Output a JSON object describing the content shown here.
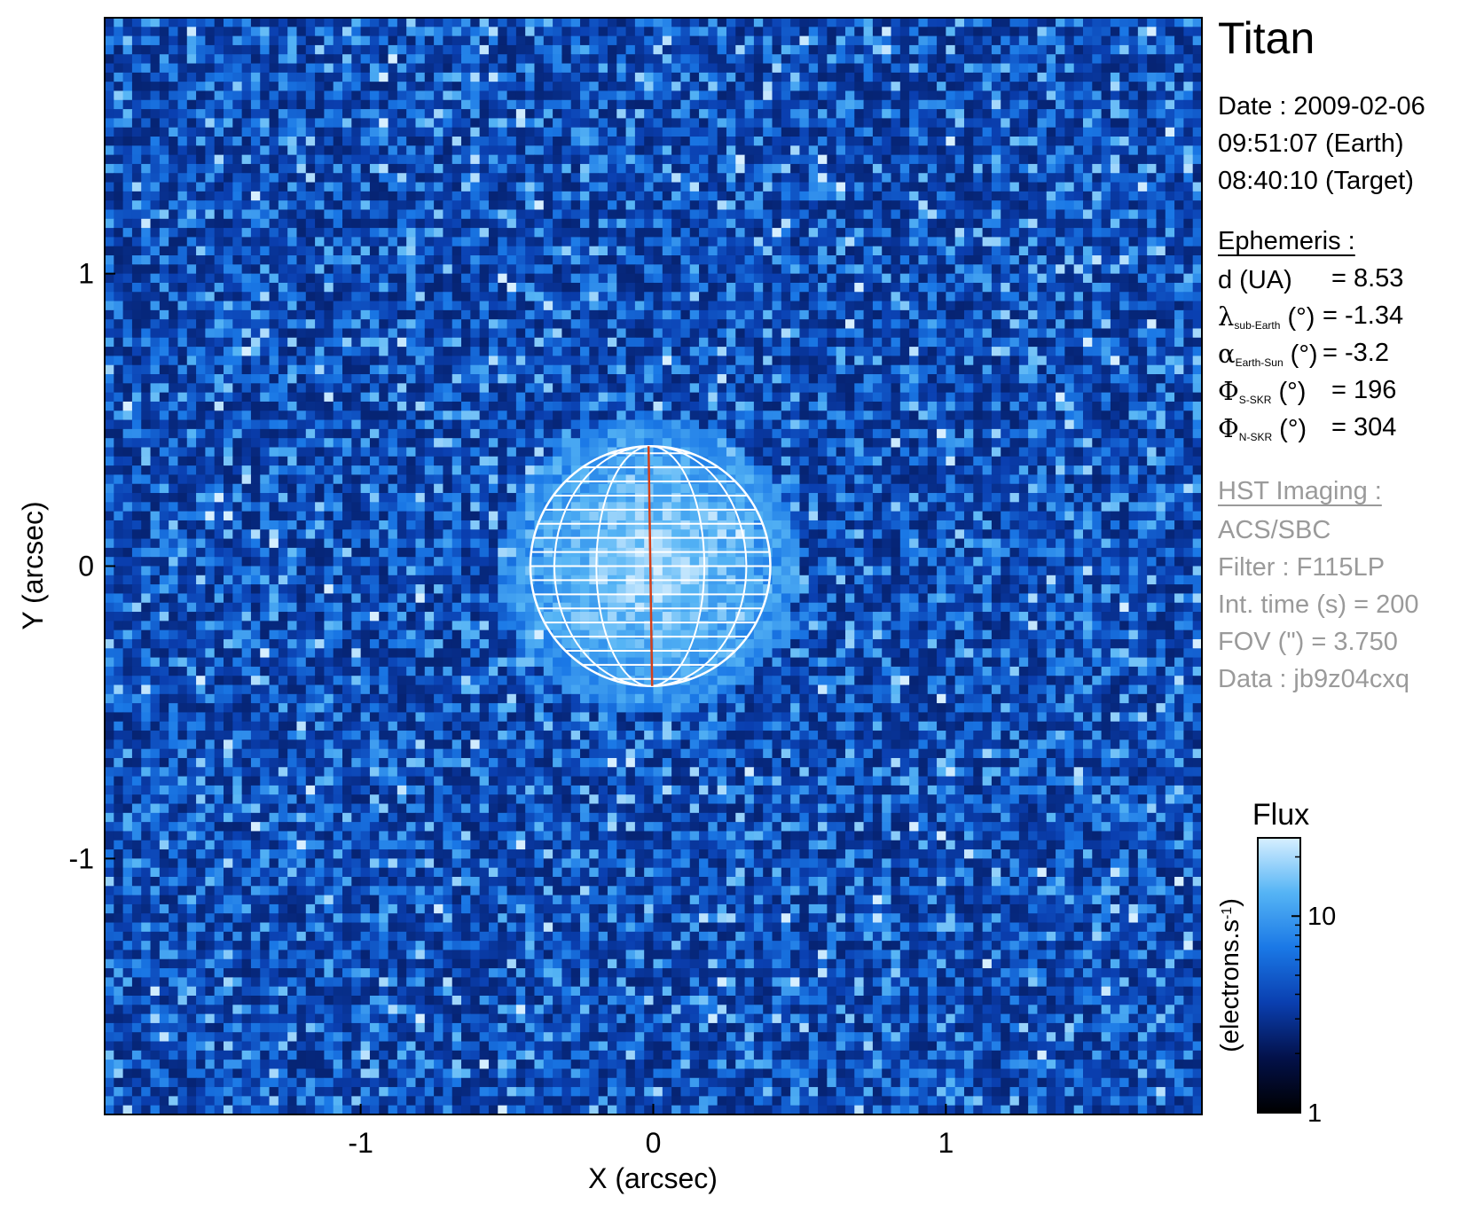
{
  "chart_data": {
    "type": "heatmap",
    "title": "Titan",
    "xlabel": "X (arcsec)",
    "ylabel": "Y (arcsec)",
    "xlim": [
      -1.875,
      1.875
    ],
    "ylim": [
      -1.875,
      1.875
    ],
    "x_ticks": [
      {
        "value": -1,
        "label": "-1"
      },
      {
        "value": 0,
        "label": "0"
      },
      {
        "value": 1,
        "label": "1"
      }
    ],
    "y_ticks": [
      {
        "value": 1,
        "label": "1"
      },
      {
        "value": 0,
        "label": "0"
      },
      {
        "value": -1,
        "label": "-1"
      }
    ],
    "disk": {
      "center_x": -0.01,
      "center_y": 0.0,
      "radius_arcsec": 0.41
    },
    "colorbar": {
      "title": "Flux",
      "label": "(electrons.s",
      "label_sup": "-1",
      "label_end": ")",
      "scale": "log",
      "range": [
        1,
        25
      ],
      "ticks": [
        {
          "value": 10,
          "label": "10"
        },
        {
          "value": 1,
          "label": "1"
        }
      ],
      "colors": [
        "#000000",
        "#03114a",
        "#0a3fb0",
        "#1a78e6",
        "#55b4f5",
        "#d7efff"
      ]
    },
    "grid": false,
    "accent_color": "#d2401b"
  },
  "info": {
    "title": "Titan",
    "date": "Date : 2009-02-06",
    "time_earth": "09:51:07 (Earth)",
    "time_target": "08:40:10 (Target)",
    "ephemeris_header": "Ephemeris :",
    "ephemeris": [
      {
        "sym": "",
        "sub": "",
        "label": "d (UA)",
        "value": "= 8.53"
      },
      {
        "sym": "λ",
        "sub": "sub-Earth",
        "label": " (°)",
        "value": "= -1.34"
      },
      {
        "sym": "α",
        "sub": "Earth-Sun",
        "label": " (°)",
        "value": "= -3.2"
      },
      {
        "sym": "Φ",
        "sub": "S-SKR",
        "label": " (°)",
        "value": "= 196"
      },
      {
        "sym": "Φ",
        "sub": "N-SKR",
        "label": " (°)",
        "value": "= 304"
      }
    ],
    "hst_header": "HST Imaging :",
    "hst": [
      "ACS/SBC",
      "Filter : F115LP",
      "Int. time (s) = 200",
      "FOV (\") = 3.750",
      "Data : jb9z04cxq"
    ]
  }
}
